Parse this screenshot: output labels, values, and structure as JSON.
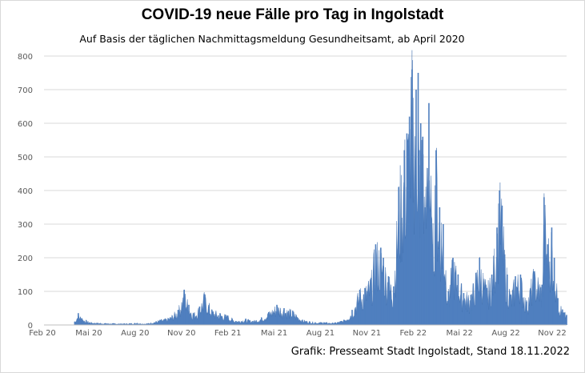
{
  "chart_data": {
    "type": "area",
    "title": "COVID-19 neue Fälle pro Tag in Ingolstadt",
    "subtitle": "Auf Basis der täglichen Nachmittagsmeldung Gesundheitsamt, ab April 2020",
    "credit": "Grafik: Presseamt Stadt Ingolstadt, Stand 18.11.2022",
    "xlabel": "",
    "ylabel": "",
    "ylim": [
      0,
      800
    ],
    "yticks": [
      0,
      100,
      200,
      300,
      400,
      500,
      600,
      700,
      800
    ],
    "grid": true,
    "legend": "none",
    "x_tick_labels": [
      "Feb 20",
      "Mai 20",
      "Aug 20",
      "Nov 20",
      "Feb 21",
      "Mai 21",
      "Aug 21",
      "Nov 21",
      "Feb 22",
      "Mai 22",
      "Aug 22",
      "Nov 22"
    ],
    "x_start": "2020-02-01",
    "x_end": "2022-11-18",
    "series": [
      {
        "color": "#4f7fbf",
        "x": [
          "2020-04-01",
          "2020-04-08",
          "2020-04-15",
          "2020-05-01",
          "2020-06-01",
          "2020-07-01",
          "2020-08-01",
          "2020-08-20",
          "2020-09-15",
          "2020-10-01",
          "2020-10-20",
          "2020-11-01",
          "2020-11-10",
          "2020-11-20",
          "2020-12-01",
          "2020-12-10",
          "2020-12-25",
          "2021-01-10",
          "2021-01-25",
          "2021-02-10",
          "2021-03-01",
          "2021-03-15",
          "2021-04-01",
          "2021-04-15",
          "2021-05-01",
          "2021-05-15",
          "2021-06-01",
          "2021-06-20",
          "2021-07-15",
          "2021-08-01",
          "2021-08-20",
          "2021-09-10",
          "2021-09-25",
          "2021-10-10",
          "2021-10-20",
          "2021-11-01",
          "2021-11-10",
          "2021-11-20",
          "2021-11-25",
          "2021-12-05",
          "2021-12-15",
          "2021-12-25",
          "2022-01-05",
          "2022-01-10",
          "2022-01-15",
          "2022-01-20",
          "2022-01-28",
          "2022-02-01",
          "2022-02-03",
          "2022-02-06",
          "2022-02-10",
          "2022-02-15",
          "2022-02-22",
          "2022-03-01",
          "2022-03-08",
          "2022-03-15",
          "2022-03-22",
          "2022-04-01",
          "2022-04-10",
          "2022-04-20",
          "2022-05-01",
          "2022-05-15",
          "2022-06-01",
          "2022-06-15",
          "2022-06-25",
          "2022-07-05",
          "2022-07-10",
          "2022-07-15",
          "2022-07-20",
          "2022-07-25",
          "2022-08-01",
          "2022-08-10",
          "2022-08-20",
          "2022-09-01",
          "2022-09-15",
          "2022-10-01",
          "2022-10-05",
          "2022-10-12",
          "2022-10-20",
          "2022-10-25",
          "2022-11-01",
          "2022-11-10",
          "2022-11-18"
        ],
        "values": [
          10,
          35,
          20,
          8,
          5,
          4,
          6,
          4,
          15,
          20,
          45,
          105,
          60,
          35,
          55,
          92,
          45,
          35,
          28,
          12,
          18,
          12,
          22,
          38,
          60,
          50,
          42,
          15,
          8,
          8,
          6,
          15,
          45,
          105,
          110,
          140,
          240,
          230,
          200,
          145,
          115,
          410,
          520,
          570,
          620,
          760,
          700,
          750,
          520,
          600,
          560,
          350,
          660,
          240,
          520,
          350,
          300,
          100,
          200,
          150,
          95,
          90,
          200,
          110,
          150,
          290,
          400,
          355,
          210,
          150,
          90,
          145,
          150,
          70,
          160,
          120,
          380,
          240,
          290,
          200,
          80,
          45,
          30
        ]
      }
    ]
  }
}
